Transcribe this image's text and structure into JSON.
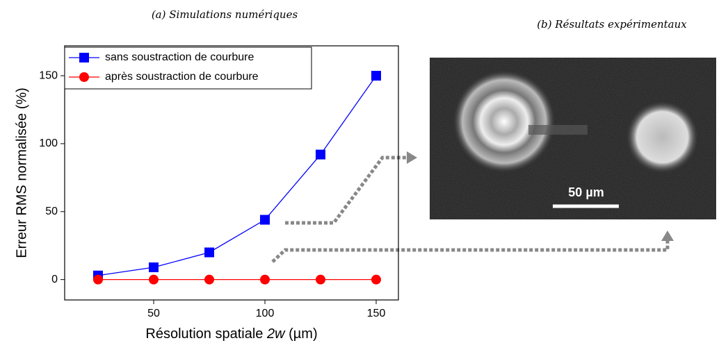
{
  "chart_data": {
    "type": "line",
    "title": "(a) Simulations numériques",
    "image_title": "(b) Résultats expérimentaux",
    "x_label": [
      "Résolution spatiale",
      "2w",
      "(µm)"
    ],
    "y_label": "Erreur RMS normalisée (%)",
    "scale_bar_label": "50 µm",
    "x": [
      25,
      50,
      75,
      100,
      125,
      150
    ],
    "series": [
      {
        "name": "sans soustraction de courbure",
        "color": "#0000ff",
        "marker": "square",
        "values": [
          3,
          9,
          20,
          44,
          92,
          150
        ]
      },
      {
        "name": "après soustraction de courbure",
        "color": "#ff0000",
        "marker": "circle",
        "values": [
          0,
          0,
          0,
          0,
          0,
          0
        ]
      }
    ],
    "xlim": [
      10,
      160
    ],
    "ylim": [
      -15,
      172
    ],
    "xticks": [
      50,
      100,
      150
    ],
    "yticks": [
      0,
      50,
      100,
      150
    ],
    "legend": "upper-left"
  }
}
